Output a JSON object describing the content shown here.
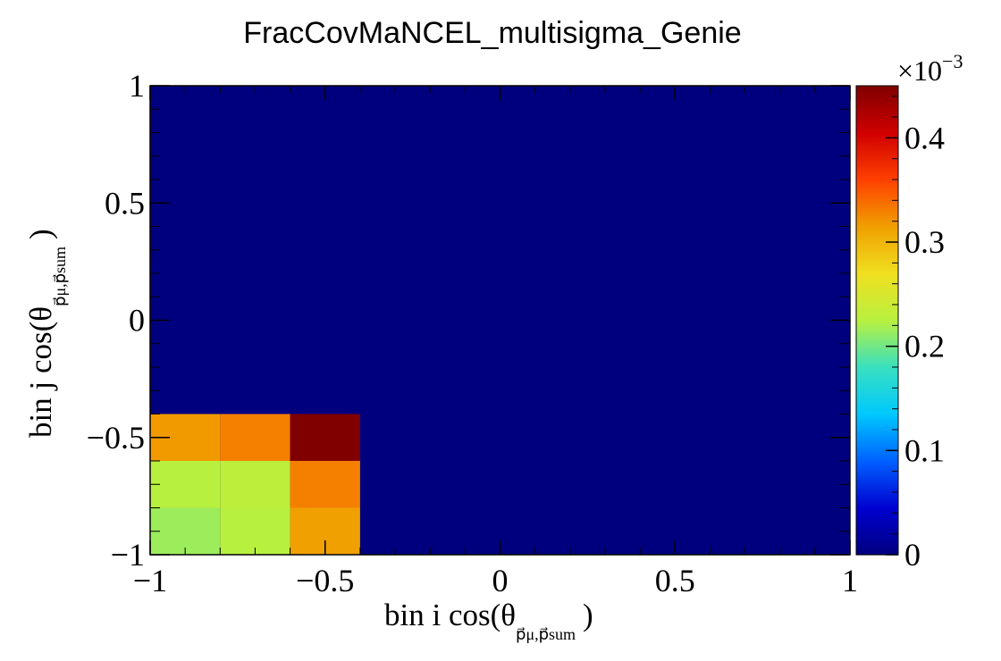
{
  "chart_data": {
    "type": "heatmap",
    "title": "FracCovMaNCEL_multisigma_Genie",
    "xlabel_prefix": "bin i cos(θ",
    "ylabel_prefix": "bin j cos(θ",
    "label_subscript": "p⃗μ,p⃗sum",
    "label_suffix": ")",
    "xlim": [
      -1,
      1
    ],
    "ylim": [
      -1,
      1
    ],
    "x_ticks": [
      -1,
      -0.5,
      0,
      0.5,
      1
    ],
    "y_ticks": [
      -1,
      -0.5,
      0,
      0.5,
      1
    ],
    "x_tick_labels": [
      "−1",
      "−0.5",
      "0",
      "0.5",
      "1"
    ],
    "y_tick_labels": [
      "−1",
      "−0.5",
      "0",
      "0.5",
      "1"
    ],
    "x_bins": [
      -1,
      -0.8,
      -0.6,
      -0.4,
      1
    ],
    "y_bins": [
      -1,
      -0.8,
      -0.6,
      -0.4,
      1
    ],
    "cells": [
      {
        "x": [
          -1,
          -0.8
        ],
        "y": [
          -1,
          -0.8
        ],
        "z": 0.000215
      },
      {
        "x": [
          -0.8,
          -0.6
        ],
        "y": [
          -1,
          -0.8
        ],
        "z": 0.000225
      },
      {
        "x": [
          -0.6,
          -0.4
        ],
        "y": [
          -1,
          -0.8
        ],
        "z": 0.000315
      },
      {
        "x": [
          -1,
          -0.8
        ],
        "y": [
          -0.8,
          -0.6
        ],
        "z": 0.000225
      },
      {
        "x": [
          -0.8,
          -0.6
        ],
        "y": [
          -0.8,
          -0.6
        ],
        "z": 0.00023
      },
      {
        "x": [
          -0.6,
          -0.4
        ],
        "y": [
          -0.8,
          -0.6
        ],
        "z": 0.00033
      },
      {
        "x": [
          -1,
          -0.8
        ],
        "y": [
          -0.6,
          -0.4
        ],
        "z": 0.000318
      },
      {
        "x": [
          -0.8,
          -0.6
        ],
        "y": [
          -0.6,
          -0.4
        ],
        "z": 0.00033
      },
      {
        "x": [
          -0.6,
          -0.4
        ],
        "y": [
          -0.6,
          -0.4
        ],
        "z": 0.00045
      }
    ],
    "background_value": 0,
    "colorbar": {
      "zlim": [
        0,
        0.00045
      ],
      "exponent_label_base": "×10",
      "exponent_label_power": "−3",
      "ticks": [
        0,
        0.0001,
        0.0002,
        0.0003,
        0.0004
      ],
      "tick_labels": [
        "0",
        "0.1",
        "0.2",
        "0.3",
        "0.4"
      ]
    },
    "palette": [
      "#00007f",
      "#0000d0",
      "#0060ff",
      "#00c8ff",
      "#38e0c0",
      "#b8f040",
      "#f0e020",
      "#f0a000",
      "#ff4000",
      "#d00000",
      "#800000"
    ]
  }
}
